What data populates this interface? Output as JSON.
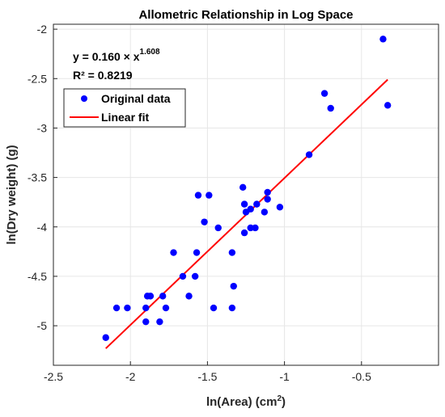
{
  "chart_data": {
    "type": "scatter",
    "title": "Allometric Relationship in Log Space",
    "xlabel": "ln(Area) (cm",
    "xlabel_sup": "2",
    "xlabel_end": ")",
    "ylabel": "ln(Dry weight) (g)",
    "xlim": [
      -2.5,
      0
    ],
    "ylim": [
      -5.4,
      -1.95
    ],
    "x_ticks": [
      -2.5,
      -2,
      -1.5,
      -1,
      -0.5
    ],
    "x_tick_labels": [
      "-2.5",
      "-2",
      "-1.5",
      "-1",
      "-0.5"
    ],
    "y_ticks": [
      -5,
      -4.5,
      -4,
      -3.5,
      -3,
      -2.5,
      -2
    ],
    "y_tick_labels": [
      "-5",
      "-4.5",
      "-4",
      "-3.5",
      "-3",
      "-2.5",
      "-2"
    ],
    "grid": true,
    "legend_position": "top-left",
    "equation": {
      "prefix": "y = 0.160 × x",
      "exponent": "1.608",
      "r2": "R² = 0.8219"
    },
    "series": [
      {
        "name": "Original data",
        "kind": "scatter",
        "color": "#0000ff",
        "points": [
          [
            -2.16,
            -5.12
          ],
          [
            -2.09,
            -4.82
          ],
          [
            -2.02,
            -4.82
          ],
          [
            -1.9,
            -4.96
          ],
          [
            -1.9,
            -4.82
          ],
          [
            -1.89,
            -4.7
          ],
          [
            -1.87,
            -4.7
          ],
          [
            -1.81,
            -4.96
          ],
          [
            -1.79,
            -4.7
          ],
          [
            -1.77,
            -4.82
          ],
          [
            -1.72,
            -4.26
          ],
          [
            -1.66,
            -4.5
          ],
          [
            -1.62,
            -4.7
          ],
          [
            -1.58,
            -4.5
          ],
          [
            -1.57,
            -4.26
          ],
          [
            -1.56,
            -3.68
          ],
          [
            -1.52,
            -3.95
          ],
          [
            -1.49,
            -3.68
          ],
          [
            -1.46,
            -4.82
          ],
          [
            -1.43,
            -4.01
          ],
          [
            -1.34,
            -4.26
          ],
          [
            -1.34,
            -4.82
          ],
          [
            -1.33,
            -4.6
          ],
          [
            -1.27,
            -3.6
          ],
          [
            -1.26,
            -3.77
          ],
          [
            -1.26,
            -4.06
          ],
          [
            -1.25,
            -3.85
          ],
          [
            -1.22,
            -4.01
          ],
          [
            -1.22,
            -3.82
          ],
          [
            -1.19,
            -4.01
          ],
          [
            -1.18,
            -3.77
          ],
          [
            -1.13,
            -3.85
          ],
          [
            -1.11,
            -3.65
          ],
          [
            -1.11,
            -3.72
          ],
          [
            -1.03,
            -3.8
          ],
          [
            -0.84,
            -3.27
          ],
          [
            -0.74,
            -2.65
          ],
          [
            -0.7,
            -2.8
          ],
          [
            -0.36,
            -2.1
          ],
          [
            -0.33,
            -2.77
          ]
        ]
      },
      {
        "name": "Linear fit",
        "kind": "line",
        "color": "#ff0000",
        "points": [
          [
            -2.16,
            -5.23
          ],
          [
            -0.33,
            -2.51
          ]
        ]
      }
    ]
  }
}
